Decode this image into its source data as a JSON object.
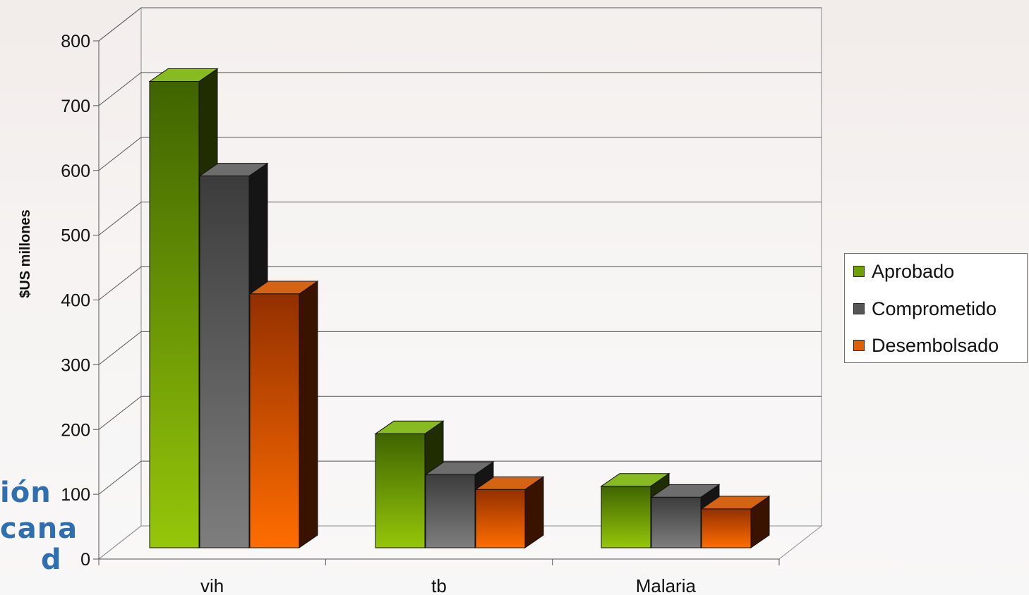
{
  "background": {
    "fragments": [
      "ión",
      "cana",
      "d"
    ]
  },
  "chart_data": {
    "type": "bar",
    "categories": [
      "vih",
      "tb",
      "Malaria"
    ],
    "series": [
      {
        "name": "Aprobado",
        "values": [
          720,
          176,
          95
        ],
        "color": "#6fa100",
        "top": "#88bb22",
        "side": "#1f2d00"
      },
      {
        "name": "Comprometido",
        "values": [
          574,
          113,
          78
        ],
        "color": "#565656",
        "top": "#6d6d6d",
        "side": "#151515"
      },
      {
        "name": "Desembolsado",
        "values": [
          392,
          90,
          60
        ],
        "color": "#e05f00",
        "top": "#d46314",
        "side": "#3a1200"
      }
    ],
    "ylabel": "$US millones",
    "xlabel": "",
    "ylim": [
      0,
      800
    ],
    "yticks": [
      "0",
      "100",
      "200",
      "300",
      "400",
      "500",
      "600",
      "700",
      "800"
    ],
    "grid": true,
    "legend_position": "right"
  }
}
